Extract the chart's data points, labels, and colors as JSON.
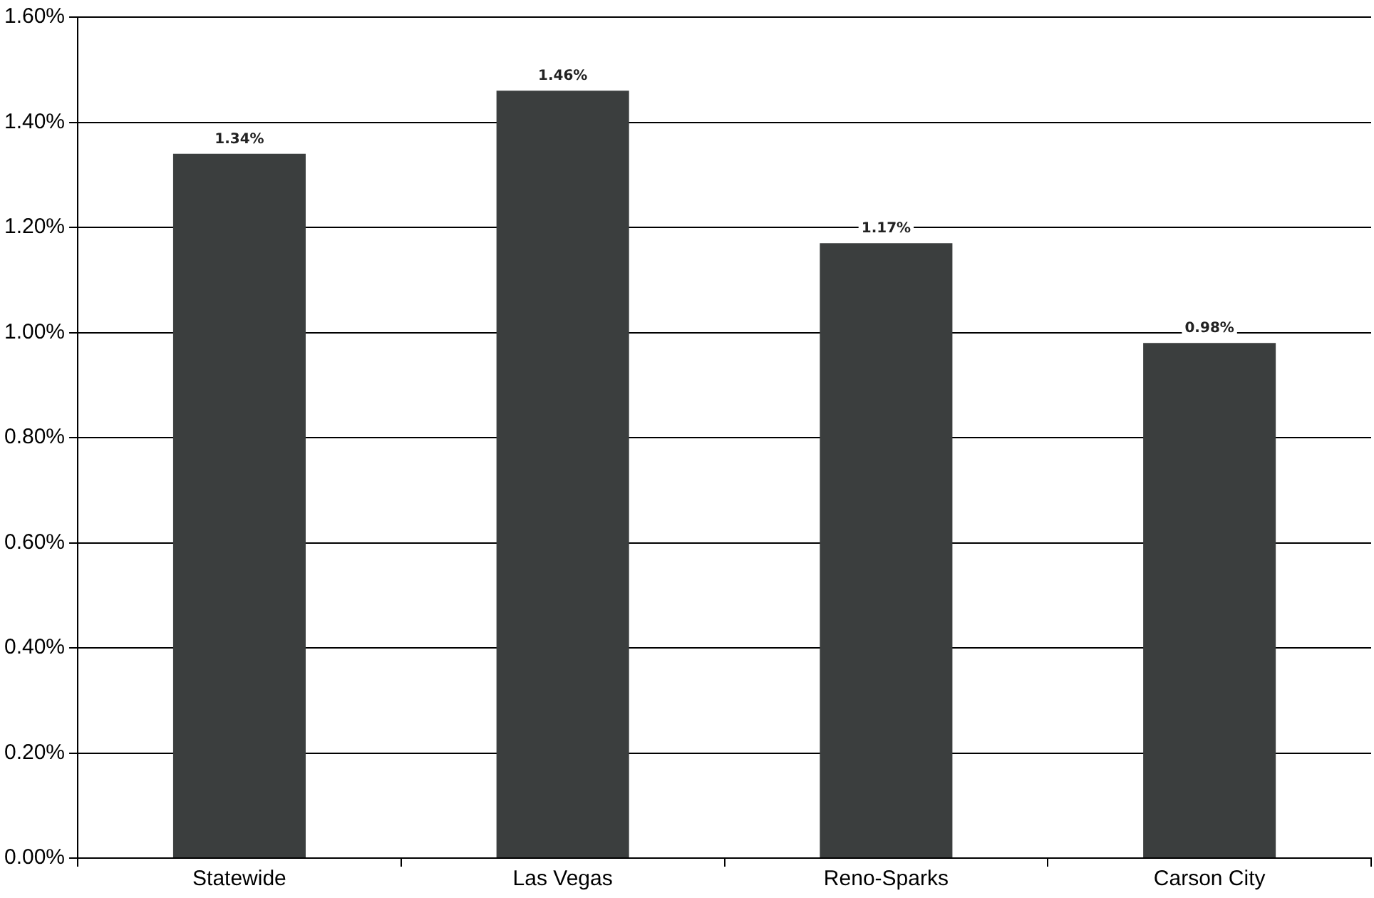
{
  "chart_data": {
    "type": "bar",
    "categories": [
      "Statewide",
      "Las Vegas",
      "Reno-Sparks",
      "Carson City"
    ],
    "values": [
      1.34,
      1.46,
      1.17,
      0.98
    ],
    "value_labels": [
      "1.34%",
      "1.46%",
      "1.17%",
      "0.98%"
    ],
    "color": "#3b3e3e",
    "ylim": [
      0,
      1.6
    ],
    "yticks": [
      {
        "value": 0,
        "label": "0.00%"
      },
      {
        "value": 0.2,
        "label": "0.20%"
      },
      {
        "value": 0.4,
        "label": "0.40%"
      },
      {
        "value": 0.6,
        "label": "0.60%"
      },
      {
        "value": 0.8,
        "label": "0.80%"
      },
      {
        "value": 1.0,
        "label": "1.00%"
      },
      {
        "value": 1.2,
        "label": "1.20%"
      },
      {
        "value": 1.4,
        "label": "1.40%"
      },
      {
        "value": 1.6,
        "label": "1.60%"
      }
    ],
    "grid": "y",
    "legend": false
  }
}
